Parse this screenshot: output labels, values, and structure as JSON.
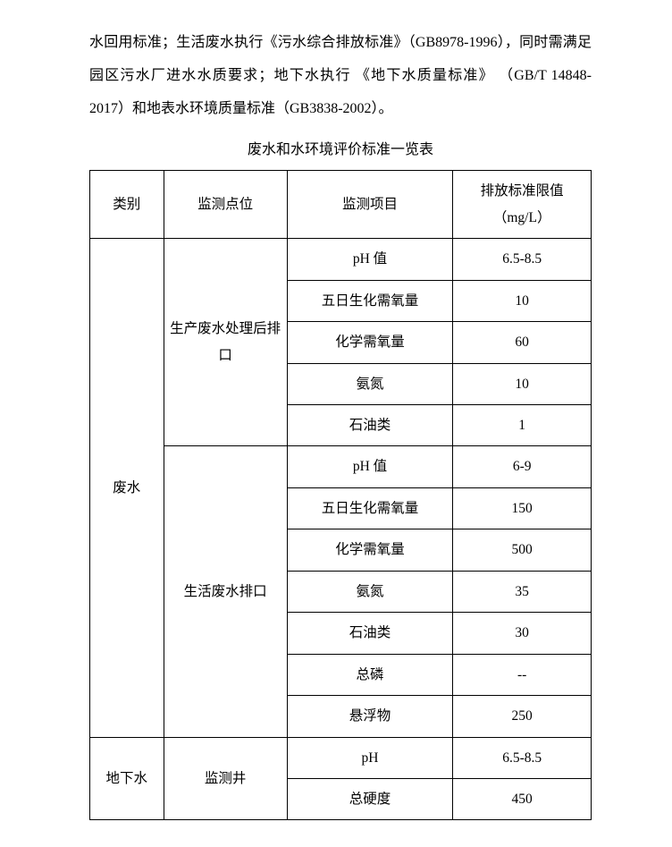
{
  "intro": {
    "p1": "水回用标准；生活废水执行《污水综合排放标准》（GB8978-1996），同时需满足园区污水厂进水水质要求；地下水执行 《地下水质量标准》 （GB/T 14848-2017）和地表水环境质量标准（GB3838-2002）。"
  },
  "caption": "废水和水环境评价标准一览表",
  "headers": {
    "category": "类别",
    "point": "监测点位",
    "item": "监测项目",
    "limit": "排放标准限值（mg/L）"
  },
  "categories": {
    "wastewater": "废水",
    "groundwater": "地下水"
  },
  "points": {
    "prod": "生产废水处理后排口",
    "life": "生活废水排口",
    "well": "监测井"
  },
  "rows": {
    "prod": [
      {
        "item": "pH 值",
        "limit": "6.5-8.5"
      },
      {
        "item": "五日生化需氧量",
        "limit": "10"
      },
      {
        "item": "化学需氧量",
        "limit": "60"
      },
      {
        "item": "氨氮",
        "limit": "10"
      },
      {
        "item": "石油类",
        "limit": "1"
      }
    ],
    "life": [
      {
        "item": "pH 值",
        "limit": "6-9"
      },
      {
        "item": "五日生化需氧量",
        "limit": "150"
      },
      {
        "item": "化学需氧量",
        "limit": "500"
      },
      {
        "item": "氨氮",
        "limit": "35"
      },
      {
        "item": "石油类",
        "limit": "30"
      },
      {
        "item": "总磷",
        "limit": "--"
      },
      {
        "item": "悬浮物",
        "limit": "250"
      }
    ],
    "well": [
      {
        "item": "pH",
        "limit": "6.5-8.5"
      },
      {
        "item": "总硬度",
        "limit": "450"
      }
    ]
  }
}
